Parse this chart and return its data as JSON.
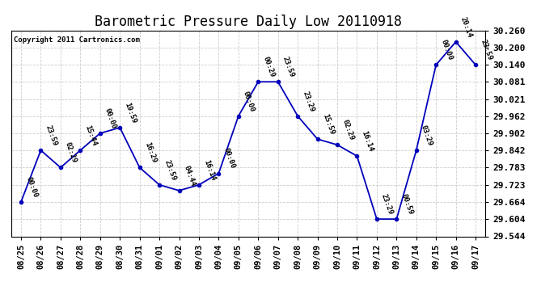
{
  "title": "Barometric Pressure Daily Low 20110918",
  "copyright": "Copyright 2011 Cartronics.com",
  "x_labels": [
    "08/25",
    "08/26",
    "08/27",
    "08/28",
    "08/29",
    "08/30",
    "08/31",
    "09/01",
    "09/02",
    "09/03",
    "09/04",
    "09/05",
    "09/06",
    "09/07",
    "09/08",
    "09/09",
    "09/10",
    "09/11",
    "09/12",
    "09/13",
    "09/14",
    "09/15",
    "09/16",
    "09/17"
  ],
  "x_values": [
    0,
    1,
    2,
    3,
    4,
    5,
    6,
    7,
    8,
    9,
    10,
    11,
    12,
    13,
    14,
    15,
    16,
    17,
    18,
    19,
    20,
    21,
    22,
    23
  ],
  "y_values": [
    29.664,
    29.843,
    29.783,
    29.843,
    29.902,
    29.922,
    29.783,
    29.723,
    29.703,
    29.723,
    29.763,
    29.962,
    30.081,
    30.081,
    29.962,
    29.882,
    29.862,
    29.823,
    29.604,
    29.604,
    29.843,
    30.14,
    30.22,
    30.14
  ],
  "annotations": [
    "00:00",
    "23:59",
    "02:29",
    "15:44",
    "00:00",
    "19:59",
    "16:29",
    "23:59",
    "04:44",
    "16:14",
    "00:00",
    "00:00",
    "00:29",
    "23:59",
    "23:29",
    "15:59",
    "02:29",
    "16:14",
    "23:29",
    "00:59",
    "03:29",
    "00:00",
    "20:14",
    "23:59"
  ],
  "y_ticks": [
    29.544,
    29.604,
    29.664,
    29.723,
    29.783,
    29.842,
    29.902,
    29.962,
    30.021,
    30.081,
    30.14,
    30.2,
    30.26
  ],
  "ylim": [
    29.544,
    30.26
  ],
  "line_color": "#0000bb",
  "marker_color": "#0000bb",
  "bg_color": "#ffffff",
  "grid_color": "#cccccc",
  "title_fontsize": 12,
  "annotation_fontsize": 6.5,
  "xlabel_fontsize": 7.5,
  "ylabel_fontsize": 8
}
